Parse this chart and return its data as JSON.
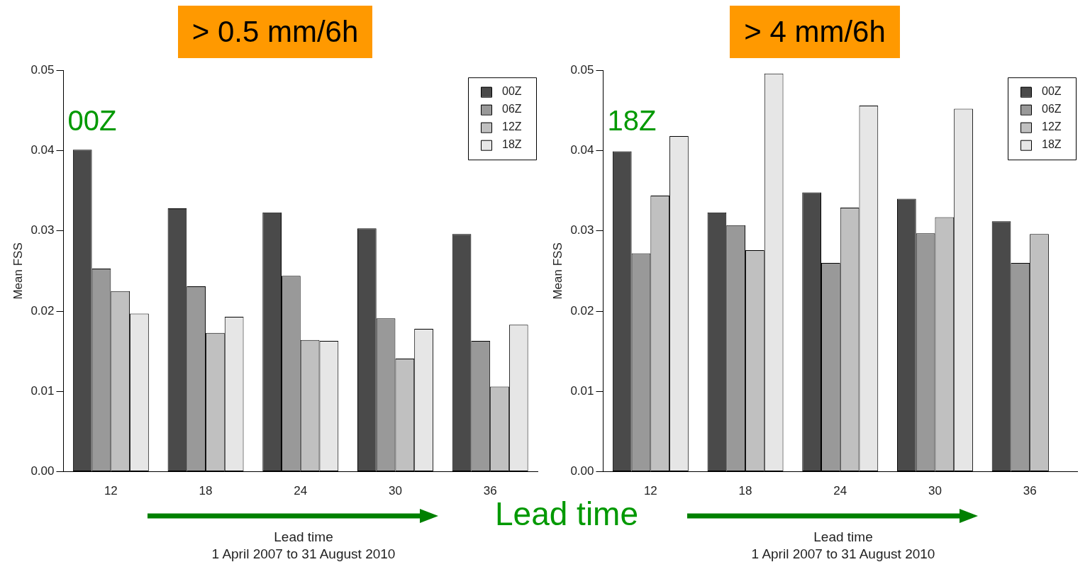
{
  "chart_data": [
    {
      "type": "bar",
      "title": "> 0.5 mm/6h",
      "xlabel": "Lead time\n1 April 2007 to 31 August 2010",
      "ylabel": "Mean FSS",
      "categories": [
        "12",
        "18",
        "24",
        "30",
        "36"
      ],
      "series": [
        {
          "name": "00Z",
          "color": "#4a4a4a",
          "values": [
            0.0401,
            0.0328,
            0.0323,
            0.0303,
            0.0296
          ]
        },
        {
          "name": "06Z",
          "color": "#999999",
          "values": [
            0.0253,
            0.0231,
            0.0244,
            0.0191,
            0.0163
          ]
        },
        {
          "name": "12Z",
          "color": "#c0c0c0",
          "values": [
            0.0225,
            0.0173,
            0.0164,
            0.0141,
            0.0106
          ]
        },
        {
          "name": "18Z",
          "color": "#e6e6e6",
          "values": [
            0.0197,
            0.0193,
            0.0163,
            0.0178,
            0.0183
          ]
        }
      ],
      "ylim": [
        0,
        0.05
      ],
      "yticks": [
        {
          "value": 0,
          "label": "0.00"
        },
        0.01,
        0.02,
        0.03,
        0.04,
        0.05
      ],
      "grid": false,
      "legend": "top right",
      "annotations": [
        "00Z",
        "Lead time"
      ]
    },
    {
      "type": "bar",
      "title": "> 4 mm/6h",
      "xlabel": "Lead time\n1 April 2007 to 31 August 2010",
      "ylabel": "Mean FSS",
      "categories": [
        "12",
        "18",
        "24",
        "30",
        "36"
      ],
      "series": [
        {
          "name": "00Z",
          "color": "#4a4a4a",
          "values": [
            0.0399,
            0.0323,
            0.0348,
            0.034,
            0.0312
          ]
        },
        {
          "name": "06Z",
          "color": "#999999",
          "values": [
            0.0272,
            0.0307,
            0.026,
            0.0297,
            0.026
          ]
        },
        {
          "name": "12Z",
          "color": "#c0c0c0",
          "values": [
            0.0344,
            0.0276,
            0.0329,
            0.0317,
            0.0296
          ]
        },
        {
          "name": "18Z",
          "color": "#e6e6e6",
          "values": [
            0.0418,
            0.0496,
            0.0456,
            0.0452,
            null
          ]
        }
      ],
      "ylim": [
        0,
        0.05
      ],
      "yticks": [
        {
          "value": 0,
          "label": "0.00"
        },
        0.01,
        0.02,
        0.03,
        0.04,
        0.05
      ],
      "grid": false,
      "legend": "top right",
      "annotations": [
        "18Z"
      ]
    }
  ]
}
